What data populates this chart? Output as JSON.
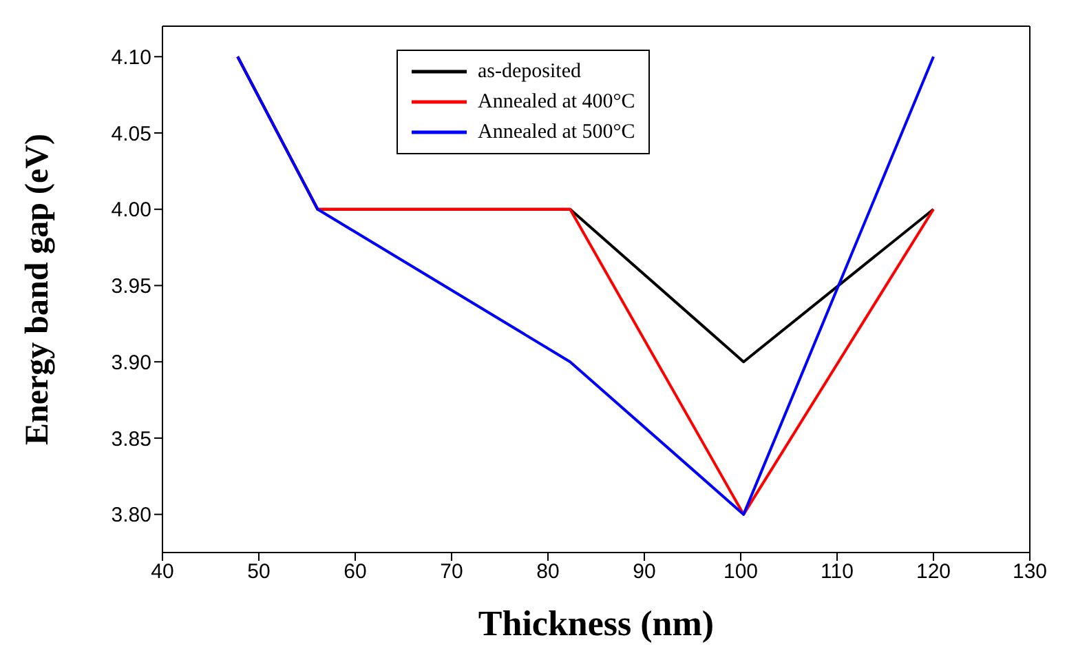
{
  "chart_data": {
    "type": "line",
    "xlabel": "Thickness (nm)",
    "ylabel": "Energy band gap (eV)",
    "x": [
      47.8,
      56.1,
      82.3,
      100.3,
      120
    ],
    "series": [
      {
        "name": "as-deposited",
        "color": "#000000",
        "values": [
          4.1,
          4.0,
          4.0,
          3.9,
          4.0
        ]
      },
      {
        "name": "Annealed at 400°C",
        "color": "#ff0000",
        "values": [
          4.1,
          4.0,
          4.0,
          3.8,
          4.0
        ]
      },
      {
        "name": "Annealed at 500°C",
        "color": "#0000ff",
        "values": [
          4.1,
          4.0,
          3.9,
          3.8,
          4.1
        ]
      }
    ],
    "xlim": [
      40,
      130
    ],
    "xticks": [
      40,
      50,
      60,
      70,
      80,
      90,
      100,
      110,
      120,
      130
    ],
    "ylim": [
      3.775,
      4.12
    ],
    "yticks": [
      {
        "value": 3.8,
        "label": "3.80"
      },
      {
        "value": 3.85,
        "label": "3.85"
      },
      {
        "value": 3.9,
        "label": "3.90"
      },
      {
        "value": 3.95,
        "label": "3.95"
      },
      {
        "value": 4.0,
        "label": "4.00"
      },
      {
        "value": 4.05,
        "label": "4.05"
      },
      {
        "value": 4.1,
        "label": "4.10"
      }
    ],
    "grid": false,
    "legend": "top",
    "marker": "none",
    "line_style": "solid"
  }
}
